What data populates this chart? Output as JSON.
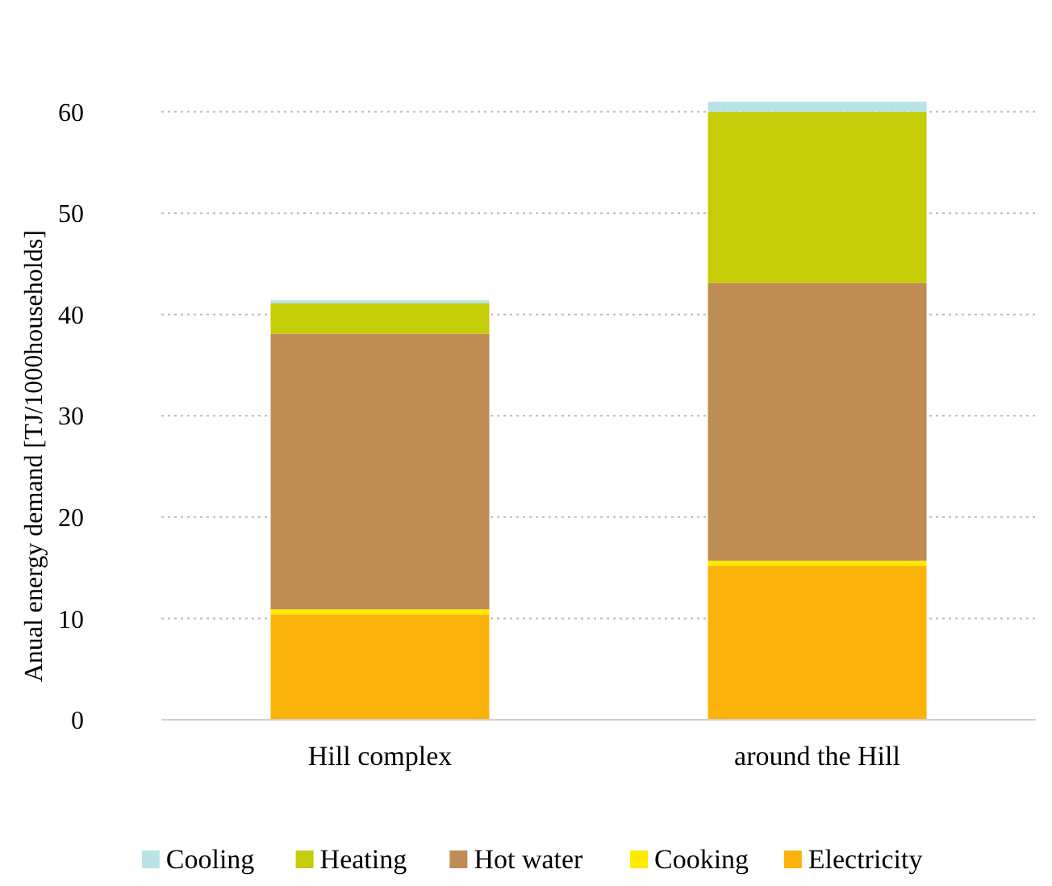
{
  "chart_data": {
    "type": "bar",
    "stacked": true,
    "ylabel": "Anual energy demand [TJ/1000households]",
    "categories": [
      "Hill complex",
      "around the Hill"
    ],
    "series": [
      {
        "name": "Electricity",
        "color": "#fbb20b",
        "values": [
          10.4,
          15.2
        ]
      },
      {
        "name": "Cooking",
        "color": "#ffea00",
        "values": [
          0.5,
          0.5
        ]
      },
      {
        "name": "Hot water",
        "color": "#bf8c53",
        "values": [
          27.2,
          27.4
        ]
      },
      {
        "name": "Heating",
        "color": "#c5cc08",
        "values": [
          3.0,
          16.9
        ]
      },
      {
        "name": "Cooling",
        "color": "#b8e4e6",
        "values": [
          0.3,
          1.0
        ]
      }
    ],
    "ylim": [
      0,
      61
    ],
    "yticks": [
      0,
      10,
      20,
      30,
      40,
      50,
      60
    ],
    "grid": "y",
    "legend": "bottom"
  }
}
